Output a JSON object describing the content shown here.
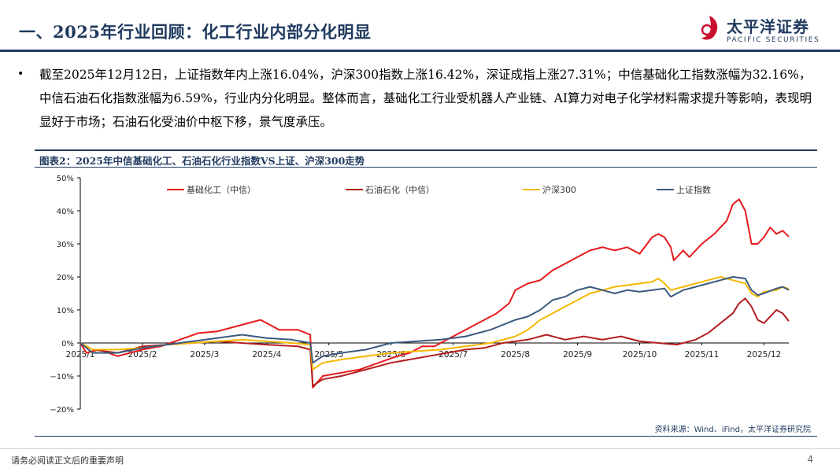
{
  "header": {
    "title": "一、2025年行业回顾：化工行业内部分化明显",
    "logo_cn": "太平洋证券",
    "logo_en": "PACIFIC SECURITIES"
  },
  "body": {
    "bullet_glyph": "•",
    "paragraph": "截至2025年12月12日，上证指数年内上涨16.04%，沪深300指数上涨16.42%，深证成指上涨27.31%；中信基础化工指数涨幅为32.16%，中信石油石化指数涨幅为6.59%，行业内分化明显。整体而言，基础化工行业受机器人产业链、AI算力对电子化学材料需求提升等影响，表现明显好于市场；石油石化受油价中枢下移，景气度承压。"
  },
  "figure": {
    "title": "图表2：2025年中信基础化工、石油石化行业指数VS上证、沪深300走势",
    "source": "资料来源：Wind、iFind，太平洋证券研究院"
  },
  "footer": {
    "disclaimer": "请务必阅读正文后的重要声明",
    "page_number": "4"
  },
  "chart_data": {
    "type": "line",
    "ylim": [
      -20,
      50
    ],
    "y_ticks": [
      "50%",
      "40%",
      "30%",
      "20%",
      "10%",
      "0%",
      "−10%",
      "−20%"
    ],
    "y_tick_values": [
      50,
      40,
      30,
      20,
      10,
      0,
      -10,
      -20
    ],
    "x_tick_labels": [
      "2025/1",
      "2025/2",
      "2025/3",
      "2025/4",
      "2025/5",
      "2025/6",
      "2025/7",
      "2025/8",
      "2025/9",
      "2025/10",
      "2025/11",
      "2025/12"
    ],
    "x_range": [
      0,
      11.4
    ],
    "legend_position": "top",
    "series": [
      {
        "name": "基础化工（中信）",
        "color": "#e8191d",
        "points": [
          [
            0,
            0
          ],
          [
            0.1,
            -3
          ],
          [
            0.3,
            -2
          ],
          [
            0.6,
            -4
          ],
          [
            1.0,
            -2
          ],
          [
            1.3,
            -1
          ],
          [
            1.6,
            1
          ],
          [
            1.9,
            3
          ],
          [
            2.2,
            3.5
          ],
          [
            2.4,
            4.5
          ],
          [
            2.6,
            5.5
          ],
          [
            2.9,
            7
          ],
          [
            3.0,
            6
          ],
          [
            3.2,
            4
          ],
          [
            3.5,
            4
          ],
          [
            3.7,
            2.5
          ],
          [
            3.74,
            -13.5
          ],
          [
            3.9,
            -10
          ],
          [
            4.2,
            -9
          ],
          [
            4.5,
            -8
          ],
          [
            4.8,
            -6
          ],
          [
            5.1,
            -4
          ],
          [
            5.3,
            -3
          ],
          [
            5.5,
            -1
          ],
          [
            5.7,
            -1
          ],
          [
            5.9,
            1
          ],
          [
            6.1,
            3
          ],
          [
            6.3,
            5
          ],
          [
            6.5,
            7
          ],
          [
            6.7,
            9
          ],
          [
            6.9,
            12
          ],
          [
            7.0,
            16
          ],
          [
            7.2,
            18
          ],
          [
            7.4,
            19
          ],
          [
            7.6,
            22
          ],
          [
            7.8,
            24
          ],
          [
            8.0,
            26
          ],
          [
            8.2,
            28
          ],
          [
            8.4,
            29
          ],
          [
            8.6,
            28
          ],
          [
            8.8,
            29
          ],
          [
            9.0,
            27
          ],
          [
            9.2,
            32
          ],
          [
            9.3,
            33
          ],
          [
            9.4,
            32
          ],
          [
            9.5,
            29
          ],
          [
            9.55,
            25
          ],
          [
            9.7,
            28
          ],
          [
            9.8,
            26
          ],
          [
            10.0,
            30
          ],
          [
            10.2,
            33
          ],
          [
            10.4,
            37
          ],
          [
            10.5,
            42
          ],
          [
            10.6,
            43.5
          ],
          [
            10.7,
            40
          ],
          [
            10.8,
            30
          ],
          [
            10.9,
            30
          ],
          [
            11.0,
            32
          ],
          [
            11.1,
            35
          ],
          [
            11.2,
            33
          ],
          [
            11.3,
            34
          ],
          [
            11.4,
            32.2
          ]
        ]
      },
      {
        "name": "石油石化（中信）",
        "color": "#b41d1d",
        "points": [
          [
            0,
            0
          ],
          [
            0.2,
            -2
          ],
          [
            0.6,
            -3
          ],
          [
            1.0,
            -1
          ],
          [
            1.4,
            -0.5
          ],
          [
            1.8,
            0
          ],
          [
            2.2,
            0.5
          ],
          [
            2.6,
            0
          ],
          [
            3.0,
            -0.5
          ],
          [
            3.5,
            -1
          ],
          [
            3.7,
            -2
          ],
          [
            3.74,
            -13
          ],
          [
            3.9,
            -11
          ],
          [
            4.2,
            -10
          ],
          [
            4.6,
            -8
          ],
          [
            5.0,
            -6
          ],
          [
            5.3,
            -5
          ],
          [
            5.6,
            -4
          ],
          [
            5.9,
            -3
          ],
          [
            6.2,
            -2
          ],
          [
            6.5,
            -1.5
          ],
          [
            6.8,
            0
          ],
          [
            7.0,
            0.5
          ],
          [
            7.2,
            1
          ],
          [
            7.5,
            2.5
          ],
          [
            7.8,
            1
          ],
          [
            8.1,
            2
          ],
          [
            8.4,
            1
          ],
          [
            8.7,
            2
          ],
          [
            9.0,
            0.5
          ],
          [
            9.3,
            0
          ],
          [
            9.6,
            -0.5
          ],
          [
            9.9,
            1
          ],
          [
            10.1,
            3
          ],
          [
            10.3,
            6
          ],
          [
            10.5,
            9
          ],
          [
            10.6,
            12
          ],
          [
            10.7,
            13.5
          ],
          [
            10.8,
            11
          ],
          [
            10.9,
            7
          ],
          [
            11.0,
            6
          ],
          [
            11.1,
            8
          ],
          [
            11.2,
            10
          ],
          [
            11.3,
            9
          ],
          [
            11.4,
            6.6
          ]
        ]
      },
      {
        "name": "沪深300",
        "color": "#f5b800",
        "points": [
          [
            0,
            0
          ],
          [
            0.2,
            -2
          ],
          [
            0.6,
            -2
          ],
          [
            1.0,
            -1.5
          ],
          [
            1.4,
            -0.5
          ],
          [
            1.8,
            0
          ],
          [
            2.2,
            0.5
          ],
          [
            2.6,
            1
          ],
          [
            3.0,
            0.5
          ],
          [
            3.4,
            0
          ],
          [
            3.7,
            -0.5
          ],
          [
            3.74,
            -8
          ],
          [
            3.9,
            -6
          ],
          [
            4.2,
            -5
          ],
          [
            4.6,
            -4
          ],
          [
            5.0,
            -3
          ],
          [
            5.4,
            -2.5
          ],
          [
            5.8,
            -2
          ],
          [
            6.2,
            -1
          ],
          [
            6.6,
            0
          ],
          [
            7.0,
            2
          ],
          [
            7.2,
            4
          ],
          [
            7.4,
            7
          ],
          [
            7.6,
            9
          ],
          [
            7.8,
            11
          ],
          [
            8.0,
            13
          ],
          [
            8.2,
            15
          ],
          [
            8.4,
            16
          ],
          [
            8.6,
            17
          ],
          [
            8.8,
            17.5
          ],
          [
            9.0,
            18
          ],
          [
            9.2,
            18.5
          ],
          [
            9.3,
            19.5
          ],
          [
            9.4,
            18
          ],
          [
            9.5,
            16
          ],
          [
            9.7,
            17
          ],
          [
            9.9,
            18
          ],
          [
            10.1,
            19
          ],
          [
            10.3,
            20
          ],
          [
            10.5,
            19
          ],
          [
            10.7,
            18
          ],
          [
            10.8,
            15
          ],
          [
            10.9,
            14
          ],
          [
            11.0,
            15.5
          ],
          [
            11.2,
            16
          ],
          [
            11.3,
            17
          ],
          [
            11.4,
            16.4
          ]
        ]
      },
      {
        "name": "上证指数",
        "color": "#3c5a7d",
        "points": [
          [
            0,
            0
          ],
          [
            0.2,
            -3
          ],
          [
            0.6,
            -3
          ],
          [
            1.0,
            -1.5
          ],
          [
            1.4,
            -0.5
          ],
          [
            1.8,
            0.5
          ],
          [
            2.2,
            1.5
          ],
          [
            2.6,
            2.5
          ],
          [
            3.0,
            1.5
          ],
          [
            3.4,
            1
          ],
          [
            3.7,
            0
          ],
          [
            3.74,
            -6
          ],
          [
            3.9,
            -4
          ],
          [
            4.2,
            -3
          ],
          [
            4.6,
            -2
          ],
          [
            5.0,
            0
          ],
          [
            5.4,
            0.5
          ],
          [
            5.8,
            1
          ],
          [
            6.2,
            2
          ],
          [
            6.6,
            4
          ],
          [
            7.0,
            7
          ],
          [
            7.2,
            8
          ],
          [
            7.4,
            10
          ],
          [
            7.6,
            13
          ],
          [
            7.8,
            14
          ],
          [
            8.0,
            16
          ],
          [
            8.2,
            17
          ],
          [
            8.4,
            16
          ],
          [
            8.6,
            15
          ],
          [
            8.8,
            16
          ],
          [
            9.0,
            15.5
          ],
          [
            9.2,
            16
          ],
          [
            9.4,
            16.5
          ],
          [
            9.5,
            14
          ],
          [
            9.7,
            16
          ],
          [
            9.9,
            17
          ],
          [
            10.1,
            18
          ],
          [
            10.3,
            19
          ],
          [
            10.5,
            20
          ],
          [
            10.7,
            19.5
          ],
          [
            10.8,
            16
          ],
          [
            10.9,
            14.5
          ],
          [
            11.0,
            15
          ],
          [
            11.2,
            16.5
          ],
          [
            11.3,
            17
          ],
          [
            11.4,
            16
          ]
        ]
      }
    ]
  }
}
